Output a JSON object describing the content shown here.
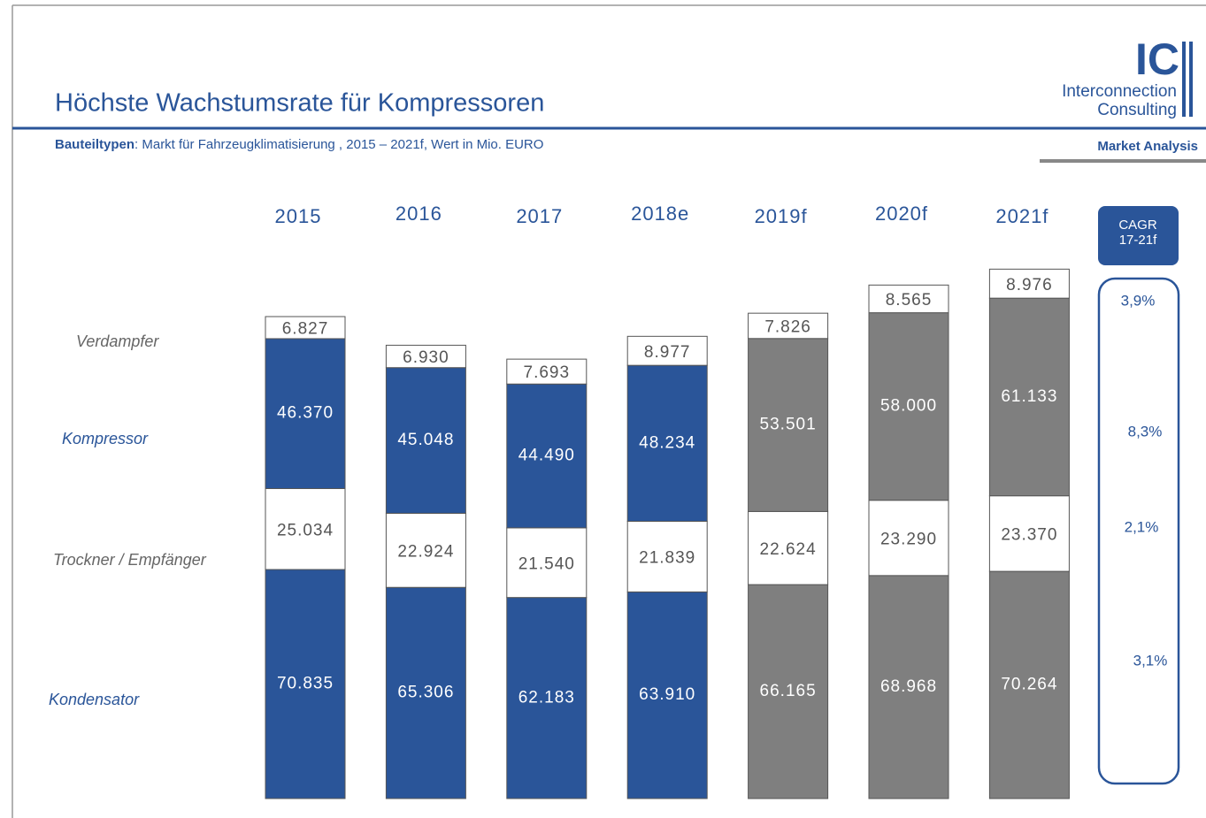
{
  "header": {
    "title": "Höchste Wachstumsrate für Kompressoren",
    "subtitle_label": "Bauteiltypen",
    "subtitle": ": Markt für Fahrzeugklimatisierung , 2015 – 2021f, Wert in Mio. EURO",
    "logo": "IC",
    "logo_line1": "Interconnection",
    "logo_line2": "Consulting",
    "tag": "Market Analysis"
  },
  "chart_data": {
    "type": "stacked_bar",
    "categories": [
      "2015",
      "2016",
      "2017",
      "2018e",
      "2019f",
      "2020f",
      "2021f"
    ],
    "series": [
      {
        "name": "Kondensator",
        "color": [
          "#2a5599",
          "#2a5599",
          "#2a5599",
          "#2a5599",
          "#7f7f7f",
          "#7f7f7f",
          "#7f7f7f"
        ],
        "values": [
          70835,
          65306,
          62183,
          63910,
          66165,
          68968,
          70264
        ],
        "value_labels": [
          "70.835",
          "65.306",
          "62.183",
          "63.910",
          "66.165",
          "68.968",
          "70.264"
        ],
        "cagr": 3.1,
        "cagr_label": "3,1%"
      },
      {
        "name": "Trockner / Empfänger",
        "color": "#ffffff",
        "values": [
          25034,
          22924,
          21540,
          21839,
          22624,
          23290,
          23370
        ],
        "value_labels": [
          "25.034",
          "22.924",
          "21.540",
          "21.839",
          "22.624",
          "23.290",
          "23.370"
        ],
        "cagr": 2.1,
        "cagr_label": "2,1%"
      },
      {
        "name": "Kompressor",
        "color": [
          "#2a5599",
          "#2a5599",
          "#2a5599",
          "#2a5599",
          "#7f7f7f",
          "#7f7f7f",
          "#7f7f7f"
        ],
        "values": [
          46370,
          45048,
          44490,
          48234,
          53501,
          58000,
          61133
        ],
        "value_labels": [
          "46.370",
          "45.048",
          "44.490",
          "48.234",
          "53.501",
          "58.000",
          "61.133"
        ],
        "cagr": 8.3,
        "cagr_label": "8,3%"
      },
      {
        "name": "Verdampfer",
        "color": "#ffffff",
        "values": [
          6827,
          6930,
          7693,
          8977,
          7826,
          8565,
          8976
        ],
        "value_labels": [
          "6.827",
          "6.930",
          "7.693",
          "8.977",
          "7.826",
          "8.565",
          "8.976"
        ],
        "cagr": 3.9,
        "cagr_label": "3,9%"
      }
    ],
    "cagr_title": [
      "CAGR",
      "17-21f"
    ]
  }
}
